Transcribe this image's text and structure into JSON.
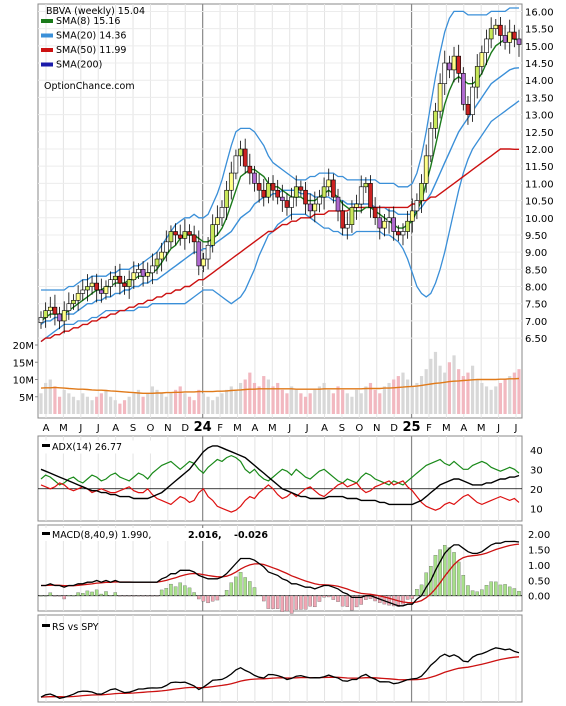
{
  "chart_data": [
    {
      "type": "candlestick",
      "title": "BBVA (weekly) 15.04",
      "brand": "OptionChance.com",
      "legend": [
        {
          "label": "SMA(8) 15.16",
          "color": "#1a7a1a"
        },
        {
          "label": "SMA(20) 14.36",
          "color": "#3a8fd8"
        },
        {
          "label": "SMA(50) 11.99",
          "color": "#cc1111"
        },
        {
          "label": "SMA(200)",
          "color": "#1a1aaa"
        }
      ],
      "price_ticks": [
        "16.00",
        "15.50",
        "15.00",
        "14.50",
        "14.00",
        "13.50",
        "13.00",
        "12.50",
        "12.00",
        "11.50",
        "11.00",
        "10.50",
        "10.00",
        "9.50",
        "9.00",
        "8.50",
        "8.00",
        "7.50",
        "7.00",
        "6.50"
      ],
      "ylim": [
        6.3,
        16.1
      ],
      "volume_ticks": [
        "20M",
        "15M",
        "10M",
        "5M"
      ],
      "month_labels": [
        "A",
        "M",
        "J",
        "J",
        "A",
        "S",
        "O",
        "N",
        "D",
        "24",
        "F",
        "M",
        "A",
        "M",
        "J",
        "J",
        "A",
        "S",
        "O",
        "N",
        "D",
        "25",
        "F",
        "M",
        "A",
        "M",
        "J",
        "J"
      ],
      "close": [
        7.1,
        7.3,
        7.4,
        7.2,
        7.0,
        7.3,
        7.5,
        7.6,
        7.8,
        7.9,
        8.0,
        8.1,
        7.9,
        7.8,
        8.0,
        8.2,
        8.3,
        8.1,
        8.0,
        8.2,
        8.4,
        8.5,
        8.3,
        8.4,
        8.6,
        8.8,
        9.0,
        9.3,
        9.6,
        9.5,
        9.4,
        9.6,
        9.5,
        9.3,
        8.6,
        8.8,
        9.2,
        9.8,
        10.0,
        10.3,
        10.8,
        11.3,
        11.8,
        12.0,
        11.5,
        11.3,
        11.0,
        10.8,
        10.6,
        11.0,
        10.8,
        10.6,
        10.5,
        10.3,
        10.6,
        10.9,
        10.8,
        10.4,
        10.2,
        10.4,
        10.6,
        10.9,
        11.1,
        10.6,
        10.2,
        9.7,
        9.8,
        10.3,
        10.4,
        10.9,
        11.0,
        10.3,
        10.0,
        9.7,
        9.9,
        10.0,
        9.6,
        9.5,
        9.6,
        9.9,
        10.2,
        10.5,
        11.0,
        11.8,
        12.6,
        13.1,
        13.9,
        14.5,
        14.3,
        14.7,
        14.2,
        13.3,
        13.0,
        13.8,
        14.4,
        14.8,
        15.2,
        15.5,
        15.6,
        15.3,
        15.1,
        15.4,
        15.2,
        15.04
      ],
      "ma8": [
        7.0,
        7.1,
        7.2,
        7.2,
        7.2,
        7.2,
        7.3,
        7.4,
        7.5,
        7.6,
        7.7,
        7.8,
        7.9,
        7.9,
        8.0,
        8.0,
        8.1,
        8.1,
        8.1,
        8.2,
        8.2,
        8.3,
        8.3,
        8.4,
        8.4,
        8.5,
        8.7,
        8.9,
        9.1,
        9.2,
        9.4,
        9.5,
        9.5,
        9.5,
        9.4,
        9.3,
        9.3,
        9.4,
        9.5,
        9.7,
        10.0,
        10.4,
        10.8,
        11.2,
        11.3,
        11.4,
        11.4,
        11.3,
        11.2,
        11.0,
        10.9,
        10.9,
        10.8,
        10.7,
        10.6,
        10.6,
        10.6,
        10.5,
        10.5,
        10.5,
        10.6,
        10.7,
        10.8,
        10.7,
        10.6,
        10.4,
        10.3,
        10.2,
        10.2,
        10.2,
        10.3,
        10.3,
        10.2,
        10.1,
        10.0,
        9.9,
        9.8,
        9.7,
        9.7,
        9.8,
        9.9,
        10.2,
        10.5,
        11.0,
        11.5,
        12.1,
        12.7,
        13.3,
        13.7,
        14.0,
        14.1,
        14.0,
        13.9,
        13.9,
        14.0,
        14.2,
        14.5,
        14.8,
        15.0,
        15.1,
        15.2,
        15.2,
        15.2,
        15.16
      ],
      "ma20": [
        6.9,
        7.0,
        7.0,
        7.1,
        7.1,
        7.2,
        7.2,
        7.2,
        7.3,
        7.4,
        7.5,
        7.5,
        7.6,
        7.6,
        7.7,
        7.7,
        7.8,
        7.8,
        7.9,
        7.9,
        8.0,
        8.0,
        8.1,
        8.1,
        8.2,
        8.2,
        8.3,
        8.4,
        8.5,
        8.6,
        8.7,
        8.8,
        8.9,
        9.0,
        9.0,
        9.1,
        9.1,
        9.2,
        9.3,
        9.4,
        9.5,
        9.6,
        9.8,
        10.0,
        10.1,
        10.2,
        10.4,
        10.5,
        10.6,
        10.6,
        10.7,
        10.7,
        10.8,
        10.8,
        10.8,
        10.8,
        10.7,
        10.7,
        10.7,
        10.6,
        10.6,
        10.6,
        10.6,
        10.5,
        10.5,
        10.5,
        10.4,
        10.4,
        10.4,
        10.4,
        10.4,
        10.4,
        10.3,
        10.3,
        10.3,
        10.2,
        10.2,
        10.1,
        10.1,
        10.1,
        10.1,
        10.2,
        10.3,
        10.5,
        10.7,
        11.0,
        11.3,
        11.6,
        11.9,
        12.2,
        12.5,
        12.7,
        12.9,
        13.1,
        13.3,
        13.5,
        13.7,
        13.9,
        14.0,
        14.1,
        14.2,
        14.3,
        14.35,
        14.36
      ],
      "ma50": [
        6.4,
        6.5,
        6.5,
        6.6,
        6.6,
        6.7,
        6.7,
        6.8,
        6.8,
        6.9,
        6.9,
        7.0,
        7.0,
        7.1,
        7.1,
        7.2,
        7.2,
        7.3,
        7.3,
        7.4,
        7.4,
        7.5,
        7.5,
        7.6,
        7.6,
        7.7,
        7.7,
        7.8,
        7.8,
        7.9,
        7.9,
        8.0,
        8.0,
        8.1,
        8.2,
        8.2,
        8.3,
        8.4,
        8.5,
        8.6,
        8.7,
        8.8,
        8.9,
        9.0,
        9.1,
        9.2,
        9.3,
        9.4,
        9.5,
        9.6,
        9.6,
        9.7,
        9.8,
        9.8,
        9.9,
        9.9,
        10.0,
        10.0,
        10.0,
        10.1,
        10.1,
        10.1,
        10.2,
        10.2,
        10.2,
        10.2,
        10.2,
        10.3,
        10.3,
        10.3,
        10.3,
        10.3,
        10.3,
        10.3,
        10.3,
        10.3,
        10.3,
        10.3,
        10.3,
        10.3,
        10.4,
        10.4,
        10.5,
        10.5,
        10.6,
        10.6,
        10.7,
        10.8,
        10.9,
        11.0,
        11.1,
        11.2,
        11.3,
        11.4,
        11.5,
        11.6,
        11.7,
        11.8,
        11.9,
        12.0,
        12.0,
        12.0,
        11.99,
        11.99
      ],
      "bb_upper": [
        7.9,
        7.9,
        7.9,
        7.9,
        7.9,
        7.9,
        8.0,
        8.0,
        8.1,
        8.2,
        8.2,
        8.3,
        8.3,
        8.3,
        8.3,
        8.4,
        8.4,
        8.5,
        8.5,
        8.5,
        8.6,
        8.6,
        8.7,
        8.8,
        8.9,
        9.0,
        9.2,
        9.4,
        9.6,
        9.8,
        9.9,
        10.0,
        10.0,
        10.1,
        10.0,
        10.0,
        10.1,
        10.4,
        10.7,
        11.1,
        11.6,
        12.1,
        12.5,
        12.6,
        12.6,
        12.6,
        12.5,
        12.3,
        12.1,
        11.8,
        11.6,
        11.5,
        11.4,
        11.3,
        11.2,
        11.1,
        11.1,
        11.1,
        11.2,
        11.2,
        11.3,
        11.3,
        11.3,
        11.3,
        11.2,
        11.2,
        11.1,
        11.1,
        11.1,
        11.1,
        11.1,
        11.1,
        11.1,
        11.0,
        11.0,
        11.0,
        11.0,
        10.9,
        10.9,
        10.9,
        11.0,
        11.3,
        11.8,
        12.5,
        13.3,
        14.1,
        14.8,
        15.4,
        15.8,
        16.0,
        16.0,
        16.0,
        15.9,
        15.9,
        15.9,
        15.9,
        15.9,
        16.0,
        16.0,
        16.0,
        16.0,
        16.1,
        16.1,
        16.1
      ],
      "bb_lower": [
        6.4,
        6.5,
        6.6,
        6.7,
        6.8,
        6.9,
        6.9,
        6.9,
        7.0,
        7.0,
        7.0,
        7.1,
        7.1,
        7.2,
        7.3,
        7.3,
        7.3,
        7.3,
        7.3,
        7.3,
        7.3,
        7.4,
        7.4,
        7.4,
        7.5,
        7.5,
        7.5,
        7.5,
        7.5,
        7.5,
        7.5,
        7.5,
        7.6,
        7.7,
        7.8,
        7.9,
        7.9,
        7.9,
        7.8,
        7.7,
        7.6,
        7.5,
        7.6,
        7.7,
        7.9,
        8.2,
        8.5,
        8.9,
        9.2,
        9.5,
        9.6,
        9.8,
        9.9,
        10.0,
        10.1,
        10.1,
        10.1,
        10.1,
        10.0,
        9.9,
        9.8,
        9.7,
        9.7,
        9.6,
        9.6,
        9.5,
        9.5,
        9.5,
        9.6,
        9.6,
        9.6,
        9.6,
        9.6,
        9.6,
        9.5,
        9.5,
        9.4,
        9.3,
        9.1,
        8.8,
        8.4,
        8.0,
        7.8,
        7.7,
        7.8,
        8.1,
        8.5,
        9.0,
        9.6,
        10.2,
        10.8,
        11.3,
        11.7,
        12.0,
        12.2,
        12.4,
        12.6,
        12.8,
        12.9,
        13.0,
        13.1,
        13.2,
        13.3,
        13.4
      ],
      "volume_ticks_note": "volume bars in millions",
      "volume": [
        6,
        9,
        10,
        8,
        5,
        7,
        6,
        5,
        4,
        6,
        5,
        4,
        5,
        6,
        7,
        5,
        4,
        3,
        4,
        5,
        6,
        7,
        5,
        6,
        8,
        7,
        6,
        5,
        6,
        7,
        8,
        6,
        5,
        4,
        7,
        6,
        5,
        4,
        5,
        6,
        7,
        8,
        7,
        9,
        10,
        12,
        9,
        8,
        11,
        10,
        8,
        9,
        7,
        6,
        8,
        7,
        6,
        5,
        6,
        7,
        8,
        9,
        7,
        6,
        8,
        7,
        6,
        5,
        7,
        6,
        8,
        9,
        7,
        6,
        8,
        9,
        10,
        11,
        12,
        10,
        8,
        9,
        11,
        13,
        16,
        18,
        14,
        12,
        15,
        17,
        13,
        11,
        12,
        14,
        10,
        9,
        8,
        7,
        8,
        9,
        10,
        11,
        12,
        13
      ],
      "volume_ma": [
        7.5,
        7.6,
        7.6,
        7.7,
        7.6,
        7.5,
        7.4,
        7.3,
        7.2,
        7.2,
        7.1,
        7.0,
        6.9,
        6.9,
        6.8,
        6.7,
        6.6,
        6.5,
        6.4,
        6.3,
        6.2,
        6.1,
        6.0,
        6.0,
        6.0,
        6.1,
        6.1,
        6.2,
        6.2,
        6.3,
        6.3,
        6.4,
        6.4,
        6.4,
        6.5,
        6.5,
        6.5,
        6.5,
        6.6,
        6.6,
        6.7,
        6.8,
        6.9,
        7.0,
        7.1,
        7.2,
        7.2,
        7.3,
        7.3,
        7.3,
        7.3,
        7.3,
        7.3,
        7.3,
        7.3,
        7.2,
        7.2,
        7.2,
        7.2,
        7.2,
        7.2,
        7.3,
        7.3,
        7.3,
        7.3,
        7.3,
        7.3,
        7.3,
        7.3,
        7.3,
        7.4,
        7.4,
        7.4,
        7.4,
        7.5,
        7.5,
        7.6,
        7.7,
        7.8,
        7.9,
        8.0,
        8.1,
        8.3,
        8.5,
        8.7,
        8.9,
        9.0,
        9.2,
        9.4,
        9.5,
        9.6,
        9.7,
        9.8,
        9.9,
        10.0,
        10.0,
        10.0,
        10.0,
        10.0,
        10.1,
        10.1,
        10.2,
        10.2,
        10.3
      ]
    },
    {
      "type": "line",
      "legend": "ADX(14) 26.77",
      "ticks": [
        "40",
        "30",
        "20",
        "10"
      ],
      "ylim": [
        5,
        45
      ],
      "adx": [
        30,
        29,
        28,
        27,
        26,
        25,
        24,
        23,
        22,
        21,
        20,
        19,
        19,
        18,
        18,
        17,
        17,
        16,
        16,
        16,
        15,
        15,
        15,
        15,
        16,
        17,
        18,
        20,
        22,
        24,
        26,
        28,
        30,
        33,
        36,
        39,
        41,
        42,
        42,
        41,
        40,
        39,
        38,
        37,
        36,
        34,
        32,
        30,
        28,
        26,
        24,
        22,
        20,
        19,
        18,
        17,
        16,
        16,
        15,
        15,
        15,
        15,
        16,
        16,
        16,
        16,
        15,
        15,
        15,
        14,
        14,
        14,
        14,
        13,
        13,
        12,
        12,
        12,
        12,
        12,
        12,
        13,
        14,
        16,
        18,
        20,
        22,
        23,
        24,
        25,
        25,
        24,
        23,
        22,
        22,
        22,
        23,
        23,
        24,
        25,
        25,
        26,
        26,
        26.77
      ],
      "plus_di": [
        25,
        27,
        26,
        24,
        22,
        23,
        25,
        26,
        24,
        23,
        25,
        27,
        26,
        24,
        25,
        27,
        28,
        26,
        25,
        24,
        26,
        28,
        27,
        25,
        28,
        30,
        32,
        33,
        34,
        32,
        30,
        32,
        34,
        33,
        30,
        28,
        31,
        33,
        35,
        34,
        36,
        37,
        36,
        34,
        30,
        28,
        30,
        27,
        25,
        24,
        26,
        28,
        30,
        29,
        27,
        30,
        28,
        26,
        25,
        27,
        29,
        30,
        28,
        26,
        24,
        23,
        25,
        24,
        23,
        26,
        28,
        27,
        25,
        24,
        23,
        22,
        24,
        23,
        22,
        24,
        26,
        28,
        30,
        32,
        33,
        34,
        35,
        33,
        32,
        34,
        32,
        30,
        30,
        32,
        33,
        34,
        33,
        31,
        30,
        29,
        30,
        31,
        30,
        28
      ],
      "minus_di": [
        22,
        21,
        20,
        21,
        23,
        22,
        20,
        19,
        20,
        21,
        20,
        18,
        19,
        20,
        19,
        18,
        18,
        19,
        20,
        21,
        19,
        18,
        18,
        20,
        17,
        15,
        14,
        13,
        12,
        14,
        16,
        15,
        13,
        14,
        18,
        20,
        16,
        14,
        11,
        10,
        9,
        8,
        9,
        11,
        14,
        16,
        15,
        18,
        20,
        22,
        20,
        17,
        15,
        16,
        18,
        16,
        18,
        20,
        21,
        19,
        17,
        16,
        18,
        20,
        22,
        23,
        21,
        22,
        23,
        20,
        18,
        19,
        21,
        22,
        23,
        24,
        22,
        23,
        24,
        21,
        19,
        16,
        13,
        11,
        10,
        9,
        10,
        12,
        13,
        12,
        14,
        16,
        17,
        15,
        13,
        12,
        13,
        14,
        15,
        16,
        15,
        14,
        15,
        13
      ]
    },
    {
      "type": "line",
      "legend": "MACD(8,40,9) 1.990,",
      "legend_signal": "2.016,",
      "legend_hist": "-0.026",
      "ticks": [
        "2.00",
        "1.50",
        "1.00",
        "0.50",
        "0.00"
      ],
      "ylim": [
        -0.4,
        2.2
      ]
    },
    {
      "type": "line",
      "legend": "RS vs SPY"
    }
  ]
}
